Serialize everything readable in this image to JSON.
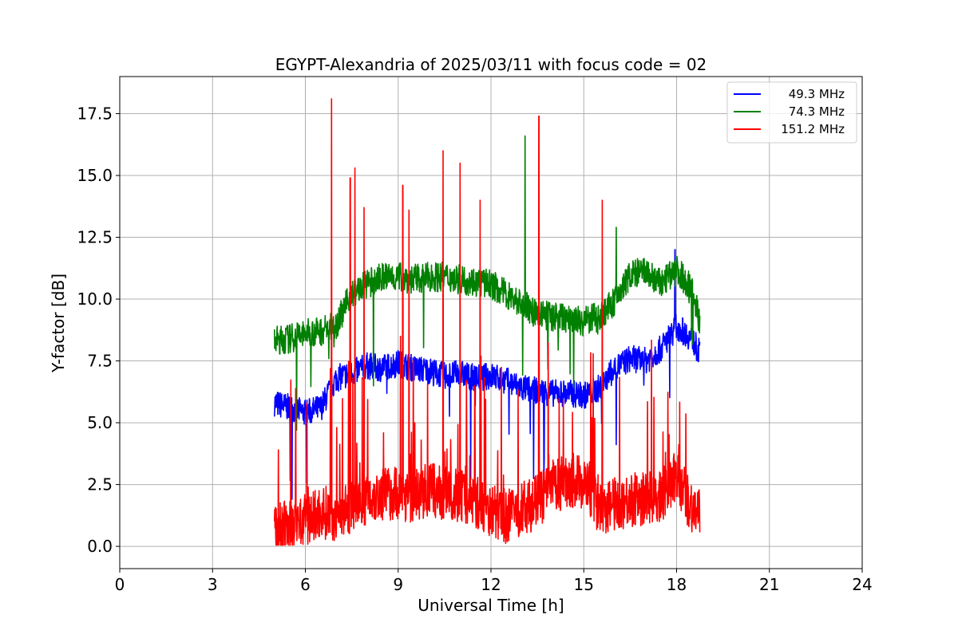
{
  "chart_data": {
    "type": "line",
    "title": "EGYPT-Alexandria of 2025/03/11 with focus code = 02",
    "xlabel": "Universal Time [h]",
    "ylabel": "Y-factor [dB]",
    "xlim": [
      0,
      24
    ],
    "ylim": [
      -0.9,
      19.0
    ],
    "xticks": [
      0,
      3,
      6,
      9,
      12,
      15,
      18,
      21,
      24
    ],
    "xtick_labels": [
      "0",
      "3",
      "6",
      "9",
      "12",
      "15",
      "18",
      "21",
      "24"
    ],
    "yticks": [
      0.0,
      2.5,
      5.0,
      7.5,
      10.0,
      12.5,
      15.0,
      17.5
    ],
    "ytick_labels": [
      "0.0",
      "2.5",
      "5.0",
      "7.5",
      "10.0",
      "12.5",
      "15.0",
      "17.5"
    ],
    "grid": true,
    "legend_position": "top-right",
    "series": [
      {
        "name": "49.3 MHz",
        "color": "#0000ff",
        "x": [
          5.0,
          5.5,
          6.0,
          6.5,
          7.0,
          7.5,
          8.0,
          8.5,
          9.0,
          9.5,
          10.0,
          10.5,
          11.0,
          11.5,
          12.0,
          12.5,
          13.0,
          13.5,
          14.0,
          14.5,
          15.0,
          15.5,
          16.0,
          16.5,
          17.0,
          17.5,
          18.0,
          18.5,
          18.75
        ],
        "y": [
          5.8,
          5.6,
          5.4,
          5.6,
          6.8,
          7.0,
          7.3,
          7.2,
          7.4,
          7.2,
          7.1,
          6.9,
          7.0,
          6.8,
          6.9,
          6.7,
          6.4,
          6.3,
          6.2,
          6.2,
          6.1,
          6.4,
          7.2,
          7.6,
          7.5,
          8.0,
          8.9,
          8.4,
          7.8
        ]
      },
      {
        "name": "74.3 MHz",
        "color": "#008000",
        "x": [
          5.0,
          5.5,
          6.0,
          6.5,
          7.0,
          7.5,
          8.0,
          8.5,
          9.0,
          9.5,
          10.0,
          10.5,
          11.0,
          11.5,
          12.0,
          12.5,
          13.0,
          13.5,
          14.0,
          14.5,
          15.0,
          15.5,
          16.0,
          16.5,
          17.0,
          17.5,
          18.0,
          18.5,
          18.75
        ],
        "y": [
          8.3,
          8.4,
          8.6,
          8.7,
          9.0,
          10.2,
          10.6,
          10.9,
          10.9,
          10.8,
          10.9,
          10.9,
          10.8,
          10.7,
          10.6,
          10.2,
          9.8,
          9.4,
          9.3,
          9.2,
          9.1,
          9.3,
          9.9,
          11.0,
          11.1,
          10.6,
          11.2,
          10.4,
          9.1
        ]
      },
      {
        "name": "151.2 MHz",
        "color": "#ff0000",
        "x": [
          5.0,
          5.5,
          6.0,
          6.5,
          7.0,
          7.5,
          8.0,
          8.5,
          9.0,
          9.5,
          10.0,
          10.5,
          11.0,
          11.5,
          12.0,
          12.5,
          13.0,
          13.5,
          14.0,
          14.5,
          15.0,
          15.5,
          16.0,
          16.5,
          17.0,
          17.5,
          18.0,
          18.5,
          18.75
        ],
        "y": [
          0.6,
          0.8,
          1.0,
          1.4,
          1.3,
          1.6,
          2.0,
          2.1,
          2.2,
          2.0,
          2.3,
          2.1,
          2.1,
          1.8,
          1.5,
          1.2,
          1.5,
          1.8,
          2.4,
          2.7,
          2.6,
          1.6,
          1.7,
          1.9,
          1.9,
          2.1,
          2.8,
          1.6,
          1.2
        ]
      }
    ],
    "spikes": [
      {
        "series": "151.2 MHz",
        "x": 6.85,
        "y": 18.1
      },
      {
        "series": "151.2 MHz",
        "x": 7.6,
        "y": 15.3
      },
      {
        "series": "151.2 MHz",
        "x": 7.45,
        "y": 14.9
      },
      {
        "series": "151.2 MHz",
        "x": 9.15,
        "y": 14.6
      },
      {
        "series": "151.2 MHz",
        "x": 10.45,
        "y": 16.0
      },
      {
        "series": "151.2 MHz",
        "x": 11.0,
        "y": 15.5
      },
      {
        "series": "151.2 MHz",
        "x": 11.65,
        "y": 14.0
      },
      {
        "series": "151.2 MHz",
        "x": 13.55,
        "y": 17.4
      },
      {
        "series": "151.2 MHz",
        "x": 15.6,
        "y": 14.0
      },
      {
        "series": "151.2 MHz",
        "x": 7.9,
        "y": 13.7
      },
      {
        "series": "151.2 MHz",
        "x": 9.35,
        "y": 13.6
      },
      {
        "series": "74.3 MHz",
        "x": 13.1,
        "y": 16.6
      },
      {
        "series": "74.3 MHz",
        "x": 16.05,
        "y": 12.9
      },
      {
        "series": "49.3 MHz",
        "x": 17.95,
        "y": 12.0
      }
    ]
  }
}
